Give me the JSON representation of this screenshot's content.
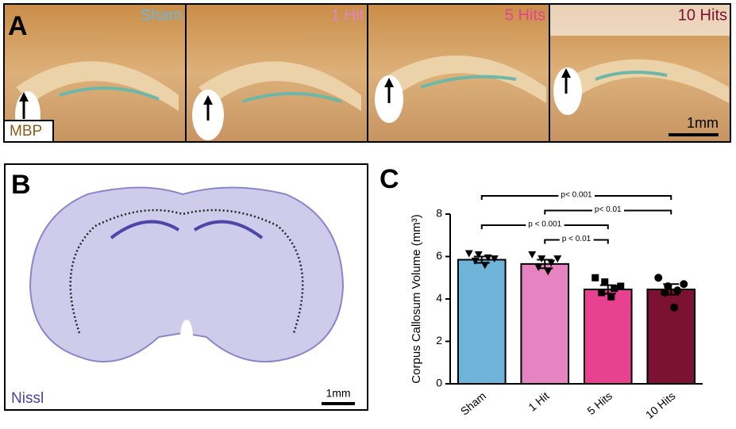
{
  "panel_a": {
    "label": "A",
    "stain": "MBP",
    "scale": "1mm",
    "groups": [
      "Sham",
      "1 Hit",
      "5 Hits",
      "10 Hits"
    ]
  },
  "panel_b": {
    "label": "B",
    "stain": "Nissl",
    "scale": "1mm"
  },
  "chart_data": {
    "type": "bar",
    "label": "C",
    "ylabel": "Corpus Callosum Volume (mm³)",
    "categories": [
      "Sham",
      "1 Hit",
      "5 Hits",
      "10 Hits"
    ],
    "values": [
      5.85,
      5.65,
      4.45,
      4.45
    ],
    "errors": [
      0.15,
      0.2,
      0.2,
      0.25
    ],
    "colors": [
      "#6fb5da",
      "#e584c0",
      "#e8418f",
      "#7b1233"
    ],
    "markers": [
      "triangle",
      "triangle",
      "square",
      "circle"
    ],
    "points": [
      [
        6.15,
        6.1,
        5.95,
        5.8,
        5.6,
        5.9
      ],
      [
        6.1,
        5.9,
        5.7,
        5.5,
        5.3,
        5.9
      ],
      [
        5.0,
        4.8,
        4.5,
        4.3,
        4.1,
        4.6
      ],
      [
        5.0,
        4.6,
        4.4,
        4.3,
        3.6,
        4.7
      ]
    ],
    "ylim": [
      0,
      8
    ],
    "yticks": [
      0,
      2,
      4,
      6,
      8
    ],
    "comparisons": [
      {
        "from": 0,
        "to": 3,
        "label": "p< 0.001"
      },
      {
        "from": 1,
        "to": 3,
        "label": "p< 0.01"
      },
      {
        "from": 0,
        "to": 2,
        "label": "p < 0.001"
      },
      {
        "from": 1,
        "to": 2,
        "label": "p < 0.01"
      }
    ]
  }
}
